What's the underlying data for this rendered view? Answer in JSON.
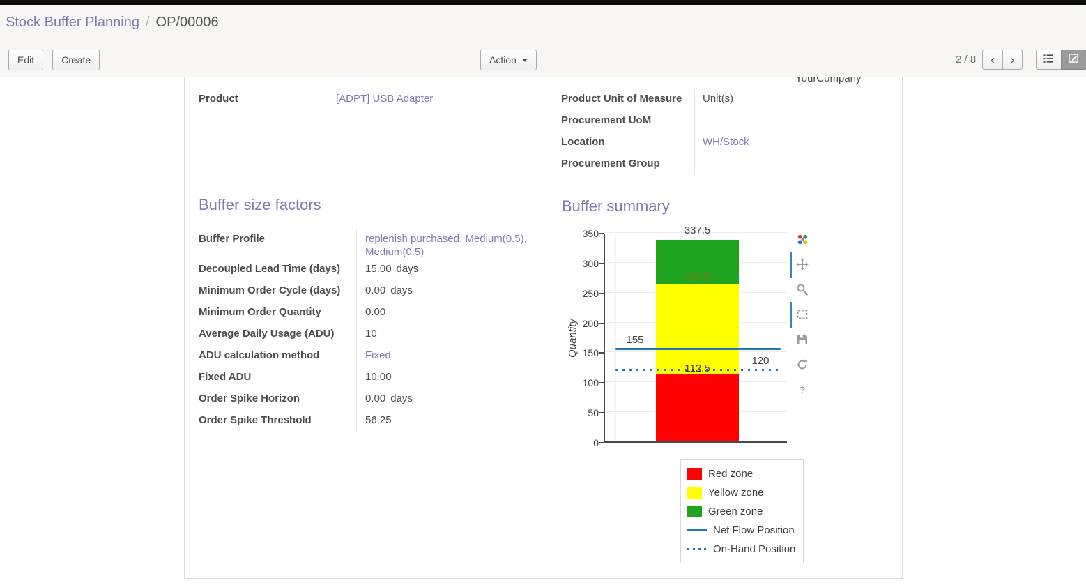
{
  "breadcrumb": {
    "section": "Stock Buffer Planning",
    "separator": "/",
    "record": "OP/00006"
  },
  "control_bar": {
    "edit_label": "Edit",
    "create_label": "Create",
    "action_label": "Action",
    "pager": "2 / 8",
    "prev_icon": "‹",
    "next_icon": "›"
  },
  "sheet": {
    "company_fragment": "YourCompany",
    "header_left_fields": [
      {
        "label": "Product",
        "value": "[ADPT] USB Adapter",
        "link": true
      }
    ],
    "header_right_fields": [
      {
        "label": "Product Unit of Measure",
        "value": "Unit(s)",
        "link": false
      },
      {
        "label": "Procurement UoM",
        "value": "",
        "link": false
      },
      {
        "label": "Location",
        "value": "WH/Stock",
        "link": true
      },
      {
        "label": "Procurement Group",
        "value": "",
        "link": false
      }
    ],
    "section_left_title": "Buffer size factors",
    "section_right_title": "Buffer summary",
    "factor_fields": [
      {
        "label": "Buffer Profile",
        "value": "replenish purchased, Medium(0.5), Medium(0.5)",
        "link": true
      },
      {
        "label": "Decoupled Lead Time (days)",
        "value": "15.00",
        "suffix": "days"
      },
      {
        "label": "Minimum Order Cycle (days)",
        "value": "0.00",
        "suffix": "days"
      },
      {
        "label": "Minimum Order Quantity",
        "value": "0.00"
      },
      {
        "label": "Average Daily Usage (ADU)",
        "value": "10"
      },
      {
        "label": "ADU calculation method",
        "value": "Fixed",
        "link": true
      },
      {
        "label": "Fixed ADU",
        "value": "10.00"
      },
      {
        "label": "Order Spike Horizon",
        "value": "0.00",
        "suffix": "days"
      },
      {
        "label": "Order Spike Threshold",
        "value": "56.25"
      }
    ]
  },
  "chart_data": {
    "type": "bar",
    "stacked": true,
    "title": "",
    "xlabel": "",
    "ylabel": "Quantity",
    "ylim": [
      0,
      350
    ],
    "yticks": [
      0,
      50,
      100,
      150,
      200,
      250,
      300,
      350
    ],
    "categories": [
      ""
    ],
    "series": [
      {
        "name": "Red zone",
        "from": 0,
        "to": 112.5,
        "color": "#fe0000"
      },
      {
        "name": "Yellow zone",
        "from": 112.5,
        "to": 262.5,
        "color": "#ffff00"
      },
      {
        "name": "Green zone",
        "from": 262.5,
        "to": 337.5,
        "color": "#1ea41e"
      }
    ],
    "reference_lines": [
      {
        "name": "Net Flow Position",
        "value": 155,
        "style": "solid",
        "color": "#1f77b4"
      },
      {
        "name": "On-Hand Position",
        "value": 120,
        "style": "dotted",
        "color": "#1f77b4"
      }
    ],
    "point_labels": [
      {
        "text": "337.5",
        "value": 337.5,
        "anchor": "bar-top"
      },
      {
        "text": "262.5",
        "value": 262.5,
        "anchor": "stack-boundary",
        "color": "#7a7a1a"
      },
      {
        "text": "155",
        "value": 155,
        "anchor": "line-left"
      },
      {
        "text": "112.5",
        "value": 112.5,
        "anchor": "line-center"
      },
      {
        "text": "120",
        "value": 120,
        "anchor": "line-right"
      }
    ],
    "legend_position": "below-right",
    "grid": true,
    "legend": [
      {
        "label": "Red zone",
        "swatch": "square",
        "color": "#fe0000"
      },
      {
        "label": "Yellow zone",
        "swatch": "square",
        "color": "#ffff00"
      },
      {
        "label": "Green zone",
        "swatch": "square",
        "color": "#1ea41e"
      },
      {
        "label": "Net Flow Position",
        "swatch": "line",
        "color": "#1f77b4"
      },
      {
        "label": "On-Hand Position",
        "swatch": "dotted-line",
        "color": "#1f77b4"
      }
    ],
    "toolbar_icons": [
      "plotly-logo-icon",
      "pan-icon",
      "zoom-icon",
      "box-select-icon",
      "save-icon",
      "reset-axes-icon",
      "help-icon"
    ]
  }
}
